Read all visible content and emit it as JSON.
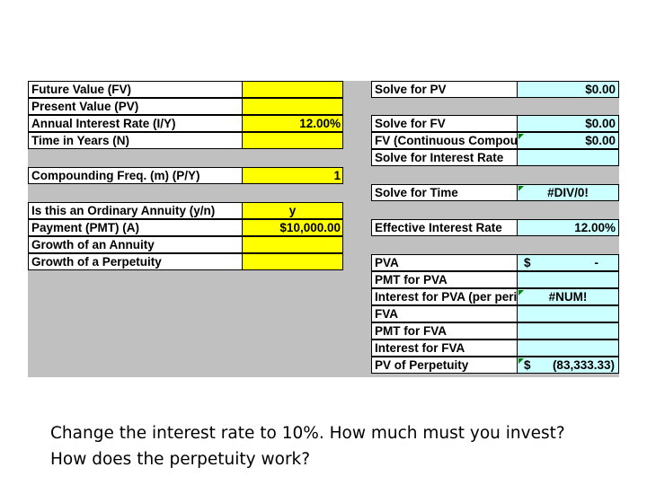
{
  "left_table": {
    "group1": [
      {
        "label": "Future Value (FV)",
        "value": ""
      },
      {
        "label": "Present Value (PV)",
        "value": ""
      },
      {
        "label": "Annual Interest Rate (I/Y)",
        "value": "12.00%"
      },
      {
        "label": "Time in Years (N)",
        "value": ""
      }
    ],
    "group2": [
      {
        "label": "Compounding Freq. (m) (P/Y)",
        "value": "1"
      }
    ],
    "group3": [
      {
        "label": "Is this an Ordinary Annuity (y/n)",
        "value": "y"
      },
      {
        "label": "Payment (PMT) (A)",
        "value": "$10,000.00"
      },
      {
        "label": "Growth of an Annuity",
        "value": ""
      },
      {
        "label": "Growth of a Perpetuity",
        "value": ""
      }
    ]
  },
  "right_table": {
    "solve_pv": {
      "label": "Solve for PV",
      "value": "$0.00"
    },
    "fv_group": [
      {
        "label": "Solve for FV",
        "value": "$0.00"
      },
      {
        "label": "FV (Continuous Compounding)",
        "value": "$0.00"
      },
      {
        "label": "Solve for Interest Rate",
        "value": ""
      }
    ],
    "solve_time": {
      "label": "Solve for Time",
      "value": "#DIV/0!"
    },
    "effective_rate": {
      "label": "Effective Interest Rate",
      "value": "12.00%"
    },
    "annuity_group": [
      {
        "label": "PVA",
        "currency": "$",
        "amount": "-"
      },
      {
        "label": "PMT for PVA",
        "value": ""
      },
      {
        "label": "Interest for PVA (per period)",
        "value": "#NUM!"
      },
      {
        "label": "FVA",
        "value": ""
      },
      {
        "label": "PMT for FVA",
        "value": ""
      },
      {
        "label": "Interest for FVA",
        "value": ""
      },
      {
        "label": "PV of Perpetuity",
        "currency": "$",
        "amount": "(83,333.33)"
      }
    ]
  },
  "caption": {
    "line1": "Change the interest rate to 10%. How much must you invest?",
    "line2": "How does the perpetuity work?"
  },
  "colors": {
    "sheet_background": "#c0c0c0",
    "input_cell": "#ffff00",
    "output_cell": "#ccffff",
    "comment_marker": "#008000"
  }
}
